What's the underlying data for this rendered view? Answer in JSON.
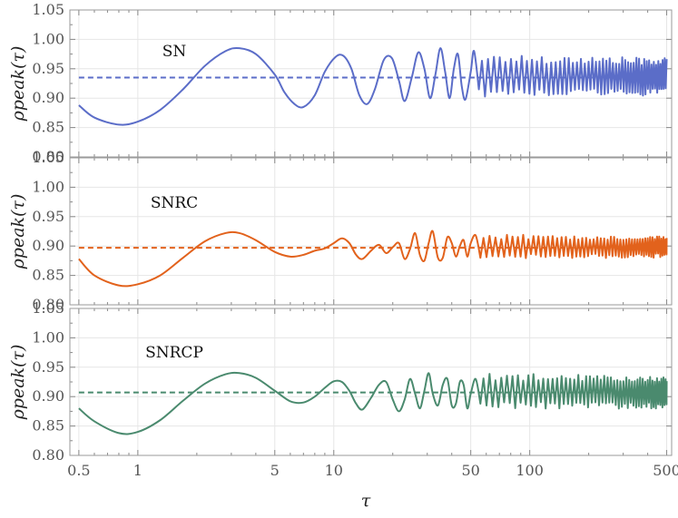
{
  "chart_data": {
    "type": "line",
    "xscale": "log",
    "xlim": [
      0.45,
      530
    ],
    "x_ticks": [
      0.5,
      1,
      5,
      10,
      50,
      100,
      500
    ],
    "x_tick_labels": [
      "0.5",
      "1",
      "5",
      "10",
      "50",
      "100",
      "500"
    ],
    "xlabel": "τ",
    "ylabel": "ρpeak(τ)",
    "grid": true,
    "panels": [
      {
        "label": "SN",
        "color": "#5b6dc8",
        "ylim": [
          0.8,
          1.05
        ],
        "y_ticks": [
          "0.80",
          "0.85",
          "0.90",
          "0.95",
          "1.00",
          "1.05"
        ],
        "mean": 0.935,
        "curve": [
          [
            0.5,
            0.888
          ],
          [
            0.6,
            0.867
          ],
          [
            0.8,
            0.855
          ],
          [
            1.0,
            0.86
          ],
          [
            1.3,
            0.88
          ],
          [
            1.7,
            0.915
          ],
          [
            2.2,
            0.955
          ],
          [
            2.8,
            0.98
          ],
          [
            3.3,
            0.985
          ],
          [
            4.0,
            0.975
          ],
          [
            5.0,
            0.94
          ],
          [
            5.6,
            0.91
          ],
          [
            6.3,
            0.89
          ],
          [
            7.0,
            0.885
          ],
          [
            8.0,
            0.905
          ],
          [
            9.0,
            0.945
          ],
          [
            10.2,
            0.97
          ],
          [
            11.2,
            0.972
          ],
          [
            12.3,
            0.95
          ],
          [
            13.5,
            0.905
          ],
          [
            14.8,
            0.89
          ],
          [
            16.2,
            0.915
          ],
          [
            18.0,
            0.965
          ],
          [
            19.8,
            0.968
          ],
          [
            21.5,
            0.93
          ],
          [
            23.0,
            0.895
          ],
          [
            25.0,
            0.935
          ],
          [
            27.0,
            0.978
          ],
          [
            29.0,
            0.95
          ],
          [
            31.0,
            0.9
          ],
          [
            33.0,
            0.94
          ],
          [
            35.0,
            0.985
          ],
          [
            37.0,
            0.945
          ],
          [
            39.0,
            0.9
          ],
          [
            41.0,
            0.95
          ],
          [
            43.0,
            0.975
          ],
          [
            45.0,
            0.92
          ],
          [
            47.0,
            0.898
          ],
          [
            50.0,
            0.945
          ],
          [
            52.0,
            0.98
          ],
          [
            55.0,
            0.915
          ]
        ],
        "band": {
          "x_start": 55,
          "x_end": 500,
          "y_low": 0.9,
          "y_high": 0.975,
          "y_low_end": 0.905,
          "y_high_end": 0.968
        }
      },
      {
        "label": "SNRC",
        "color": "#e2621c",
        "ylim": [
          0.8,
          1.05
        ],
        "y_ticks": [
          "0.80",
          "0.85",
          "0.90",
          "0.95",
          "1.00",
          "1.05"
        ],
        "mean": 0.897,
        "curve": [
          [
            0.5,
            0.878
          ],
          [
            0.6,
            0.85
          ],
          [
            0.8,
            0.833
          ],
          [
            1.0,
            0.835
          ],
          [
            1.3,
            0.85
          ],
          [
            1.7,
            0.88
          ],
          [
            2.2,
            0.908
          ],
          [
            2.8,
            0.922
          ],
          [
            3.3,
            0.922
          ],
          [
            4.0,
            0.91
          ],
          [
            5.0,
            0.89
          ],
          [
            6.0,
            0.882
          ],
          [
            7.0,
            0.885
          ],
          [
            8.0,
            0.892
          ],
          [
            9.0,
            0.896
          ],
          [
            10.0,
            0.905
          ],
          [
            11.0,
            0.913
          ],
          [
            12.0,
            0.905
          ],
          [
            13.0,
            0.885
          ],
          [
            14.0,
            0.878
          ],
          [
            15.5,
            0.892
          ],
          [
            17.0,
            0.902
          ],
          [
            18.5,
            0.888
          ],
          [
            20.0,
            0.898
          ],
          [
            21.5,
            0.905
          ],
          [
            23.0,
            0.878
          ],
          [
            24.5,
            0.895
          ],
          [
            26.0,
            0.922
          ],
          [
            27.5,
            0.885
          ],
          [
            29.0,
            0.875
          ],
          [
            30.5,
            0.905
          ],
          [
            32.0,
            0.925
          ],
          [
            34.0,
            0.88
          ],
          [
            36.0,
            0.88
          ],
          [
            38.0,
            0.915
          ],
          [
            40.0,
            0.905
          ],
          [
            42.0,
            0.882
          ],
          [
            44.0,
            0.9
          ],
          [
            46.0,
            0.91
          ],
          [
            48.0,
            0.882
          ],
          [
            50.0,
            0.905
          ],
          [
            53.0,
            0.918
          ],
          [
            56.0,
            0.88
          ]
        ],
        "band": {
          "x_start": 56,
          "x_end": 500,
          "y_low": 0.878,
          "y_high": 0.92,
          "y_low_end": 0.88,
          "y_high_end": 0.917
        }
      },
      {
        "label": "SNRCP",
        "color": "#4a8a6e",
        "ylim": [
          0.8,
          1.05
        ],
        "y_ticks": [
          "0.80",
          "0.85",
          "0.90",
          "0.95",
          "1.00",
          "1.05"
        ],
        "mean": 0.907,
        "curve": [
          [
            0.5,
            0.88
          ],
          [
            0.6,
            0.858
          ],
          [
            0.8,
            0.838
          ],
          [
            1.0,
            0.84
          ],
          [
            1.3,
            0.86
          ],
          [
            1.7,
            0.893
          ],
          [
            2.2,
            0.922
          ],
          [
            2.8,
            0.938
          ],
          [
            3.3,
            0.94
          ],
          [
            4.0,
            0.932
          ],
          [
            5.0,
            0.91
          ],
          [
            6.0,
            0.892
          ],
          [
            7.0,
            0.89
          ],
          [
            8.0,
            0.9
          ],
          [
            9.0,
            0.915
          ],
          [
            10.0,
            0.926
          ],
          [
            11.0,
            0.925
          ],
          [
            12.0,
            0.91
          ],
          [
            13.0,
            0.888
          ],
          [
            14.0,
            0.878
          ],
          [
            15.5,
            0.898
          ],
          [
            17.0,
            0.92
          ],
          [
            18.5,
            0.925
          ],
          [
            20.0,
            0.895
          ],
          [
            21.5,
            0.875
          ],
          [
            23.0,
            0.895
          ],
          [
            24.5,
            0.93
          ],
          [
            26.0,
            0.905
          ],
          [
            27.5,
            0.88
          ],
          [
            29.0,
            0.91
          ],
          [
            30.5,
            0.94
          ],
          [
            32.0,
            0.905
          ],
          [
            34.0,
            0.885
          ],
          [
            36.0,
            0.92
          ],
          [
            38.0,
            0.93
          ],
          [
            40.0,
            0.885
          ],
          [
            42.0,
            0.888
          ],
          [
            44.0,
            0.925
          ],
          [
            46.0,
            0.92
          ],
          [
            48.0,
            0.88
          ],
          [
            50.0,
            0.905
          ],
          [
            53.0,
            0.93
          ],
          [
            56.0,
            0.888
          ]
        ],
        "band": {
          "x_start": 56,
          "x_end": 500,
          "y_low": 0.878,
          "y_high": 0.94,
          "y_low_end": 0.88,
          "y_high_end": 0.935
        }
      }
    ]
  }
}
